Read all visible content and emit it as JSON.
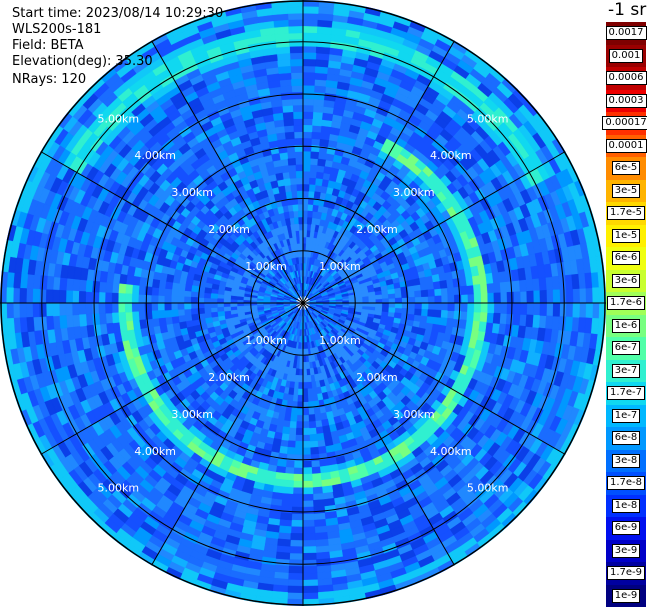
{
  "header": {
    "start_time": "Start time: 2023/08/14 10:29:30",
    "site": "WLS200s-181",
    "field": "Field: BETA",
    "elevation_label": "Elevation(deg):",
    "elevation_value": "35.30",
    "nrays_label": "NRays:",
    "nrays_value": "120"
  },
  "colorbar": {
    "title": "-1 sr",
    "labels": [
      "0.0017",
      "0.001",
      "0.0006",
      "0.0003",
      "0.00017",
      "0.0001",
      "6e-5",
      "3e-5",
      "1.7e-5",
      "1e-5",
      "6e-6",
      "3e-6",
      "1.7e-6",
      "1e-6",
      "6e-7",
      "3e-7",
      "1.7e-7",
      "1e-7",
      "6e-8",
      "3e-8",
      "1.7e-8",
      "1e-8",
      "6e-9",
      "3e-9",
      "1.7e-9",
      "1e-9"
    ],
    "colors": [
      "#7f0000",
      "#9a0000",
      "#c00000",
      "#ee0000",
      "#ff3000",
      "#ff6000",
      "#ff8c00",
      "#ffb400",
      "#ffd800",
      "#fff000",
      "#f0ff10",
      "#c8ff30",
      "#a0ff58",
      "#78ff80",
      "#50ffa8",
      "#30f0d0",
      "#10d8f0",
      "#00b8ff",
      "#0098ff",
      "#0070ff",
      "#0050ff",
      "#0030ff",
      "#0010ef",
      "#0000c8",
      "#0000a0",
      "#000080"
    ]
  },
  "chart_data": {
    "type": "heatmap",
    "projection": "polar (PPI)",
    "field": "BETA",
    "units": "sr^-1",
    "color_scale": "log",
    "range_rings_km": [
      1.0,
      2.0,
      3.0,
      4.0,
      5.0
    ],
    "range_ring_labels": [
      "1.00km",
      "2.00km",
      "3.00km",
      "4.00km",
      "5.00km"
    ],
    "azimuth_spokes_deg": [
      0,
      30,
      60,
      90,
      120,
      150,
      180,
      210,
      240,
      270,
      300,
      330
    ],
    "max_range_km": 5.8,
    "nrays": 120,
    "background_value": "1e-8",
    "features": [
      {
        "description": "high backscatter ring",
        "range_km": 3.4,
        "azimuth_span_deg": [
          25,
          275
        ],
        "value": "1.7e-7"
      },
      {
        "description": "outer partial ring",
        "range_km": 5.1,
        "azimuth_span_deg": [
          -60,
          60
        ],
        "value": "1e-7"
      }
    ]
  }
}
